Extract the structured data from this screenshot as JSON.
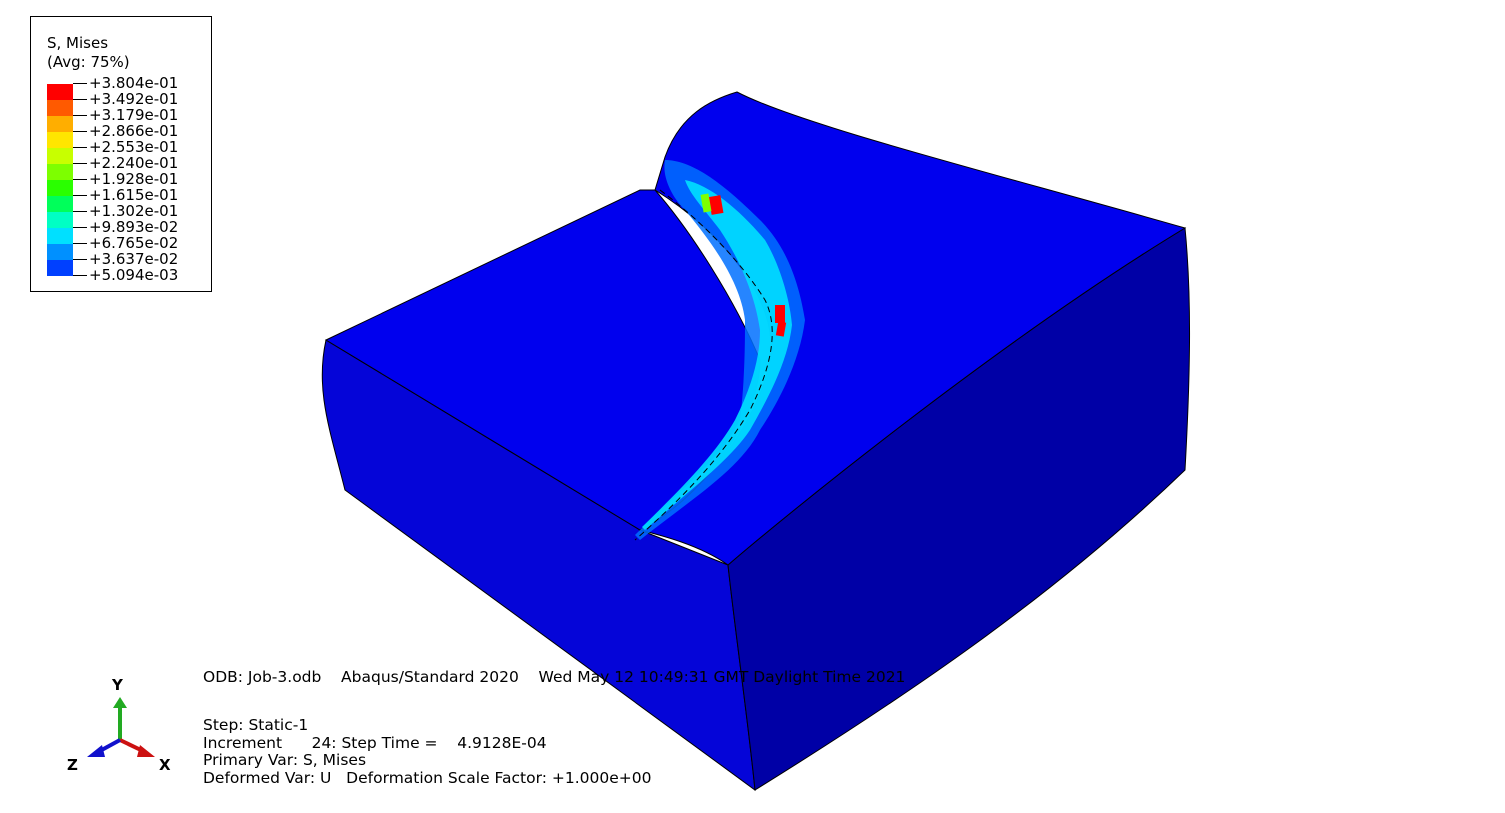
{
  "legend": {
    "title_line1": "S, Mises",
    "title_line2": "(Avg: 75%)",
    "levels": [
      {
        "label": "+3.804e-01",
        "color": "#ff0000"
      },
      {
        "label": "+3.492e-01",
        "color": "#ff5a00"
      },
      {
        "label": "+3.179e-01",
        "color": "#ffae00"
      },
      {
        "label": "+2.866e-01",
        "color": "#ffe600"
      },
      {
        "label": "+2.553e-01",
        "color": "#c8ff00"
      },
      {
        "label": "+2.240e-01",
        "color": "#7dff00"
      },
      {
        "label": "+1.928e-01",
        "color": "#2aff00"
      },
      {
        "label": "+1.615e-01",
        "color": "#00ff5a"
      },
      {
        "label": "+1.302e-01",
        "color": "#00ffc4"
      },
      {
        "label": "+9.893e-02",
        "color": "#00e0ff"
      },
      {
        "label": "+6.765e-02",
        "color": "#0090ff"
      },
      {
        "label": "+3.637e-02",
        "color": "#0040ff"
      },
      {
        "label": "+5.094e-03",
        "color": "#0000ff"
      }
    ]
  },
  "info": {
    "odb_line": "ODB: Job-3.odb    Abaqus/Standard 2020    Wed May 12 10:49:31 GMT Daylight Time 2021",
    "step_line": "Step: Static-1",
    "increment_line": "Increment      24: Step Time =    4.9128E-04",
    "primary_var_line": "Primary Var: S, Mises",
    "deformed_var_line": "Deformed Var: U   Deformation Scale Factor: +1.000e+00"
  },
  "triad": {
    "y_label": "Y",
    "x_label": "X",
    "z_label": "Z",
    "y_color": "#22aa22",
    "x_color": "#cc1111",
    "z_color": "#1111cc"
  },
  "colors": {
    "face_top": "#0000ee",
    "face_front": "#0505d8",
    "face_right": "#0000a6"
  }
}
